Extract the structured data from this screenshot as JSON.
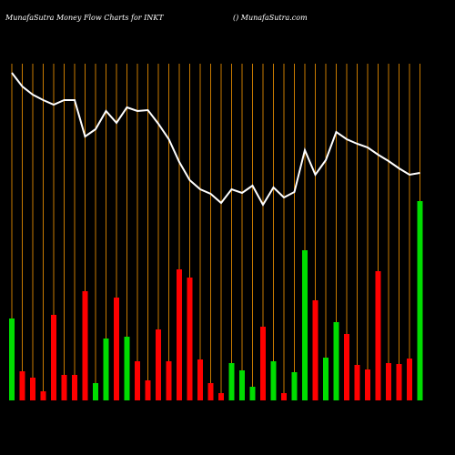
{
  "chart_data": {
    "type": "bar",
    "title": "MunafaSutra  Money Flow  Charts for INKT",
    "subtitle": "() MunafaSutra.com",
    "categories": [
      null,
      null,
      null,
      null,
      null,
      null,
      null,
      null,
      null,
      null,
      null,
      null,
      null,
      null,
      null,
      null,
      null,
      null,
      null,
      null,
      null,
      null,
      null,
      null,
      null,
      null,
      null,
      null,
      null,
      null,
      null,
      null,
      null,
      null,
      null,
      null,
      null,
      null,
      null,
      null
    ],
    "values": [
      90,
      32,
      25,
      10,
      94,
      28,
      28,
      120,
      19,
      68,
      113,
      70,
      43,
      22,
      78,
      43,
      144,
      135,
      45,
      19,
      8,
      41,
      33,
      15,
      81,
      43,
      8,
      31,
      165,
      110,
      47,
      86,
      73,
      39,
      34,
      142,
      41,
      40,
      46,
      219
    ],
    "colors": [
      "#00dd00",
      "#ff0000",
      "#ff0000",
      "#ff0000",
      "#ff0000",
      "#ff0000",
      "#ff0000",
      "#ff0000",
      "#00dd00",
      "#00dd00",
      "#ff0000",
      "#00dd00",
      "#ff0000",
      "#ff0000",
      "#ff0000",
      "#ff0000",
      "#ff0000",
      "#ff0000",
      "#ff0000",
      "#ff0000",
      "#ff0000",
      "#00dd00",
      "#00dd00",
      "#00dd00",
      "#ff0000",
      "#00dd00",
      "#ff0000",
      "#00dd00",
      "#00dd00",
      "#ff0000",
      "#00dd00",
      "#00dd00",
      "#ff0000",
      "#ff0000",
      "#ff0000",
      "#ff0000",
      "#ff0000",
      "#ff0000",
      "#ff0000",
      "#00dd00"
    ],
    "line": {
      "color": "#ffffff",
      "values": [
        360,
        345,
        336,
        330,
        325,
        330,
        330,
        290,
        298,
        318,
        305,
        322,
        318,
        319,
        304,
        287,
        262,
        242,
        232,
        227,
        217,
        232,
        228,
        236,
        215,
        234,
        223,
        229,
        275,
        248,
        264,
        295,
        287,
        282,
        278,
        270,
        263,
        255,
        248,
        250
      ]
    },
    "grid_color": "#c87a00",
    "ylim": [
      0,
      370
    ]
  }
}
